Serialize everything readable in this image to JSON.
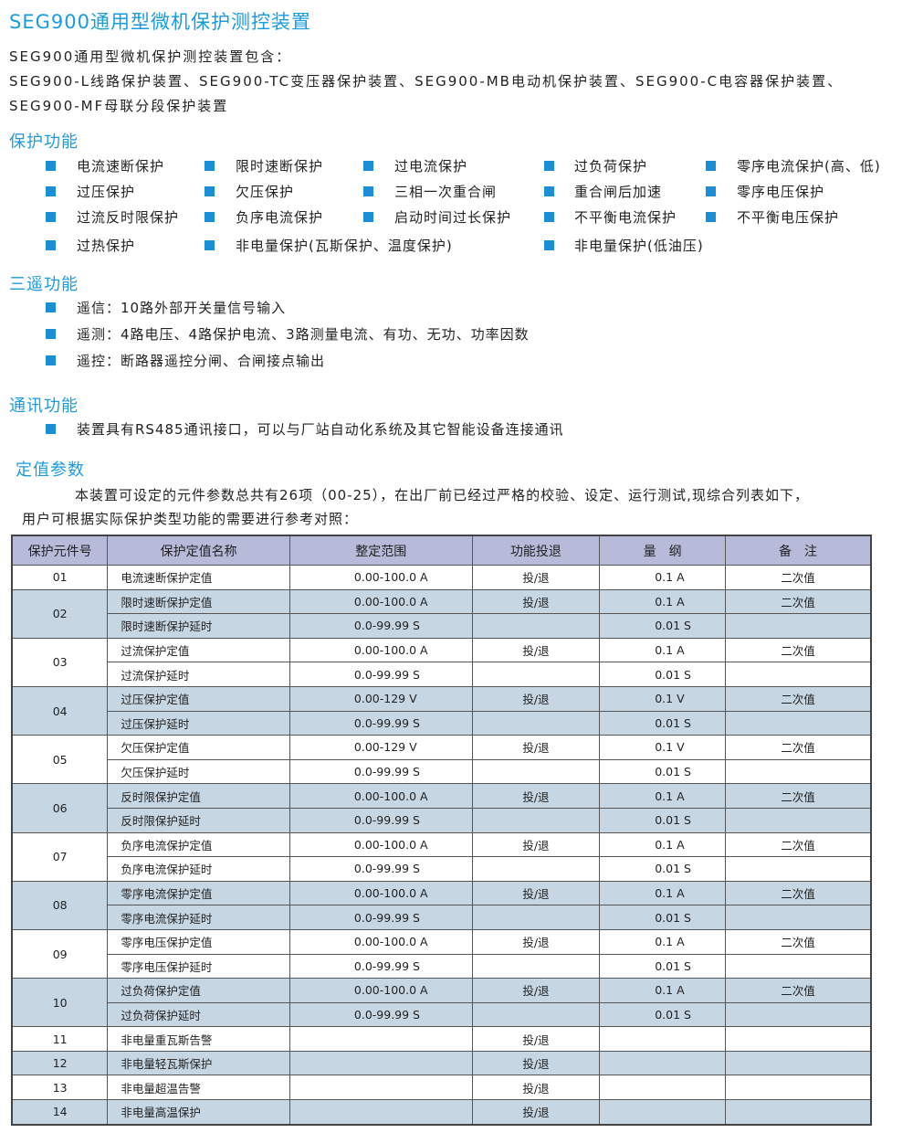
{
  "title": "SEG900通用型微机保护测控装置",
  "intro": [
    "SEG900通用型微机保护测控装置包含：",
    "SEG900-L线路保护装置、SEG900-TC变压器保护装置、SEG900-MB电动机保护装置、SEG900-C电容器保护装置、",
    "SEG900-MF母联分段保护装置"
  ],
  "protection": {
    "heading": "保护功能",
    "rows": [
      [
        "电流速断保护",
        "限时速断保护",
        "过电流保护",
        "过负荷保护",
        "零序电流保护(高、低)"
      ],
      [
        "过压保护",
        "欠压保护",
        "三相一次重合闸",
        "重合闸后加速",
        "零序电压保护"
      ],
      [
        "过流反时限保护",
        "负序电流保护",
        "启动时间过长保护",
        "不平衡电流保护",
        "不平衡电压保护"
      ],
      [
        "过热保护",
        "非电量保护(瓦斯保护、温度保护)",
        "",
        "非电量保护(低油压)",
        ""
      ]
    ]
  },
  "remote": {
    "heading": "三遥功能",
    "items": [
      "遥信：10路外部开关量信号输入",
      "遥测：4路电压、4路保护电流、3路测量电流、有功、无功、功率因数",
      "遥控：断路器遥控分闸、合闸接点输出"
    ]
  },
  "comm": {
    "heading": "通讯功能",
    "items": [
      "装置具有RS485通讯接口，可以与厂站自动化系统及其它智能设备连接通讯"
    ]
  },
  "settings": {
    "heading": "定值参数",
    "para1": "本装置可设定的元件参数总共有26项（00-25），在出厂前已经过严格的校验、设定、运行测试,现综合列表如下，",
    "para2": "用户可根据实际保护类型功能的需要进行参考对照："
  },
  "table": {
    "headers": [
      "保护元件号",
      "保护定值名称",
      "整定范围",
      "功能投退",
      "量　纲",
      "备　注"
    ],
    "groups": [
      {
        "id": "01",
        "rows": [
          [
            "电流速断保护定值",
            "0.00-100.0 A",
            "投/退",
            "0.1 A",
            "二次值"
          ]
        ]
      },
      {
        "id": "02",
        "rows": [
          [
            "限时速断保护定值",
            "0.00-100.0 A",
            "投/退",
            "0.1 A",
            "二次值"
          ],
          [
            "限时速断保护延时",
            "0.0-99.99 S",
            "",
            "0.01 S",
            ""
          ]
        ]
      },
      {
        "id": "03",
        "rows": [
          [
            "过流保护定值",
            "0.00-100.0 A",
            "投/退",
            "0.1 A",
            "二次值"
          ],
          [
            "过流保护延时",
            "0.0-99.99 S",
            "",
            "0.01 S",
            ""
          ]
        ]
      },
      {
        "id": "04",
        "rows": [
          [
            "过压保护定值",
            "0.00-129 V",
            "投/退",
            "0.1 V",
            "二次值"
          ],
          [
            "过压保护延时",
            "0.0-99.99 S",
            "",
            "0.01 S",
            ""
          ]
        ]
      },
      {
        "id": "05",
        "rows": [
          [
            "欠压保护定值",
            "0.00-129 V",
            "投/退",
            "0.1 V",
            "二次值"
          ],
          [
            "欠压保护延时",
            "0.0-99.99 S",
            "",
            "0.01 S",
            ""
          ]
        ]
      },
      {
        "id": "06",
        "rows": [
          [
            "反时限保护定值",
            "0.00-100.0 A",
            "投/退",
            "0.1 A",
            "二次值"
          ],
          [
            "反时限保护延时",
            "0.0-99.99 S",
            "",
            "0.01 S",
            ""
          ]
        ]
      },
      {
        "id": "07",
        "rows": [
          [
            "负序电流保护定值",
            "0.00-100.0 A",
            "投/退",
            "0.1 A",
            "二次值"
          ],
          [
            "负序电流保护延时",
            "0.0-99.99 S",
            "",
            "0.01 S",
            ""
          ]
        ]
      },
      {
        "id": "08",
        "rows": [
          [
            "零序电流保护定值",
            "0.00-100.0 A",
            "投/退",
            "0.1 A",
            "二次值"
          ],
          [
            "零序电流保护延时",
            "0.0-99.99 S",
            "",
            "0.01 S",
            ""
          ]
        ]
      },
      {
        "id": "09",
        "rows": [
          [
            "零序电压保护定值",
            "0.00-100.0 A",
            "投/退",
            "0.1 A",
            "二次值"
          ],
          [
            "零序电压保护延时",
            "0.0-99.99 S",
            "",
            "0.01 S",
            ""
          ]
        ]
      },
      {
        "id": "10",
        "rows": [
          [
            "过负荷保护定值",
            "0.00-100.0 A",
            "投/退",
            "0.1 A",
            "二次值"
          ],
          [
            "过负荷保护延时",
            "0.0-99.99 S",
            "",
            "0.01 S",
            ""
          ]
        ]
      },
      {
        "id": "11",
        "rows": [
          [
            "非电量重瓦斯告警",
            "",
            "投/退",
            "",
            ""
          ]
        ]
      },
      {
        "id": "12",
        "rows": [
          [
            "非电量轻瓦斯保护",
            "",
            "投/退",
            "",
            ""
          ]
        ]
      },
      {
        "id": "13",
        "rows": [
          [
            "非电量超温告警",
            "",
            "投/退",
            "",
            ""
          ]
        ]
      },
      {
        "id": "14",
        "rows": [
          [
            "非电量高温保护",
            "",
            "投/退",
            "",
            ""
          ]
        ]
      }
    ]
  },
  "colors": {
    "accent": "#1a9be0",
    "header_bg": "#b7bad8",
    "shaded_row": "#c6d6e3"
  }
}
